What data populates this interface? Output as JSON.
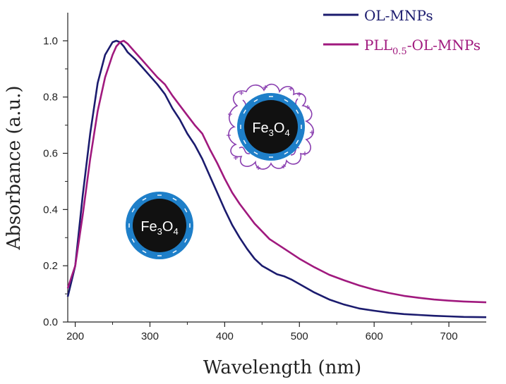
{
  "chart_data": {
    "type": "line",
    "title": "",
    "xlabel": "Wavelength (nm)",
    "ylabel": "Absorbance (a.u.)",
    "xlim": [
      190,
      750
    ],
    "ylim": [
      0,
      1.1
    ],
    "x_ticks": [
      200,
      300,
      400,
      500,
      600,
      700
    ],
    "x_tick_labels": [
      "200",
      "300",
      "400",
      "500",
      "600",
      "700"
    ],
    "y_ticks": [
      0,
      0.2,
      0.4,
      0.6,
      0.8,
      1.0
    ],
    "y_tick_labels": [
      "0.0",
      "0.2",
      "0.4",
      "0.6",
      "0.8",
      "1.0"
    ],
    "grid": false,
    "legend_position": "top-right",
    "series": [
      {
        "name": "OL-MNPs",
        "legend_main": "OL-MNPs",
        "color": "#1b1b6e",
        "x": [
          190,
          200,
          210,
          220,
          230,
          240,
          250,
          255,
          260,
          265,
          270,
          280,
          290,
          300,
          310,
          320,
          330,
          340,
          350,
          360,
          370,
          380,
          390,
          400,
          410,
          420,
          430,
          440,
          450,
          460,
          470,
          480,
          490,
          500,
          520,
          540,
          560,
          580,
          600,
          620,
          640,
          660,
          680,
          700,
          720,
          750
        ],
        "y": [
          0.09,
          0.2,
          0.45,
          0.67,
          0.85,
          0.95,
          0.995,
          1.0,
          0.995,
          0.98,
          0.96,
          0.935,
          0.905,
          0.875,
          0.845,
          0.81,
          0.76,
          0.72,
          0.67,
          0.63,
          0.58,
          0.52,
          0.46,
          0.4,
          0.345,
          0.3,
          0.26,
          0.225,
          0.2,
          0.185,
          0.17,
          0.162,
          0.15,
          0.135,
          0.105,
          0.08,
          0.062,
          0.048,
          0.04,
          0.033,
          0.028,
          0.025,
          0.022,
          0.02,
          0.018,
          0.017
        ]
      },
      {
        "name": "PLL0.5-OL-MNPs",
        "legend_main": "PLL",
        "legend_sub": "0.5",
        "legend_rest": "-OL-MNPs",
        "color": "#a0197e",
        "x": [
          190,
          200,
          210,
          220,
          230,
          240,
          250,
          255,
          260,
          265,
          270,
          280,
          290,
          300,
          310,
          320,
          330,
          340,
          350,
          360,
          370,
          380,
          390,
          400,
          410,
          420,
          440,
          460,
          480,
          500,
          520,
          540,
          560,
          580,
          600,
          620,
          640,
          660,
          680,
          700,
          720,
          750
        ],
        "y": [
          0.12,
          0.2,
          0.38,
          0.58,
          0.75,
          0.87,
          0.95,
          0.98,
          0.995,
          1.0,
          0.99,
          0.96,
          0.93,
          0.9,
          0.87,
          0.845,
          0.805,
          0.77,
          0.735,
          0.7,
          0.67,
          0.615,
          0.565,
          0.51,
          0.46,
          0.42,
          0.35,
          0.295,
          0.26,
          0.225,
          0.195,
          0.168,
          0.148,
          0.13,
          0.115,
          0.103,
          0.093,
          0.086,
          0.08,
          0.076,
          0.073,
          0.07
        ]
      }
    ],
    "annotations": [
      {
        "id": "bare",
        "core_label_main": "Fe",
        "core_sub1": "3",
        "core_label_mid": "O",
        "core_sub2": "4"
      },
      {
        "id": "coated",
        "core_label_main": "Fe",
        "core_sub1": "3",
        "core_label_mid": "O",
        "core_sub2": "4"
      }
    ]
  },
  "colors": {
    "shell": "#1e7fc9",
    "core": "#111111",
    "pll": "#8a3fb0"
  }
}
